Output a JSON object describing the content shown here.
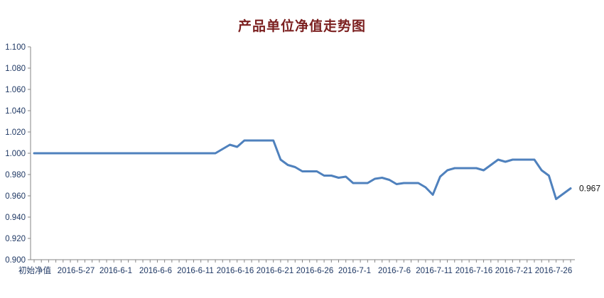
{
  "chart_data": {
    "type": "line",
    "title": "产品单位净值走势图",
    "xlabel": "",
    "ylabel": "",
    "ylim": [
      0.9,
      1.1
    ],
    "y_ticks": [
      "0.900",
      "0.920",
      "0.940",
      "0.960",
      "0.980",
      "1.000",
      "1.020",
      "1.040",
      "1.060",
      "1.080",
      "1.100"
    ],
    "x_tick_labels": [
      "初始净值",
      "2016-5-27",
      "2016-6-1",
      "2016-6-6",
      "2016-6-11",
      "2016-6-16",
      "2016-6-21",
      "2016-6-26",
      "2016-7-1",
      "2016-7-6",
      "2016-7-11",
      "2016-7-16",
      "2016-7-21",
      "2016-7-26"
    ],
    "grid": false,
    "line_color": "#4f81bd",
    "end_label": "0.967",
    "series": [
      {
        "values": [
          1.0,
          1.0,
          1.0,
          1.0,
          1.0,
          1.0,
          1.0,
          1.0,
          1.0,
          1.0,
          1.0,
          1.0,
          1.0,
          1.0,
          1.0,
          1.0,
          1.0,
          1.0,
          1.0,
          1.0,
          1.0,
          1.0,
          1.0,
          1.0,
          1.0,
          1.0,
          1.004,
          1.008,
          1.006,
          1.012,
          1.012,
          1.012,
          1.012,
          1.012,
          0.994,
          0.989,
          0.987,
          0.983,
          0.983,
          0.983,
          0.979,
          0.979,
          0.977,
          0.978,
          0.972,
          0.972,
          0.972,
          0.976,
          0.977,
          0.975,
          0.971,
          0.972,
          0.972,
          0.972,
          0.968,
          0.961,
          0.978,
          0.984,
          0.986,
          0.986,
          0.986,
          0.986,
          0.984,
          0.989,
          0.994,
          0.992,
          0.994,
          0.994,
          0.994,
          0.994,
          0.984,
          0.979,
          0.957,
          0.962,
          0.967
        ]
      }
    ]
  }
}
